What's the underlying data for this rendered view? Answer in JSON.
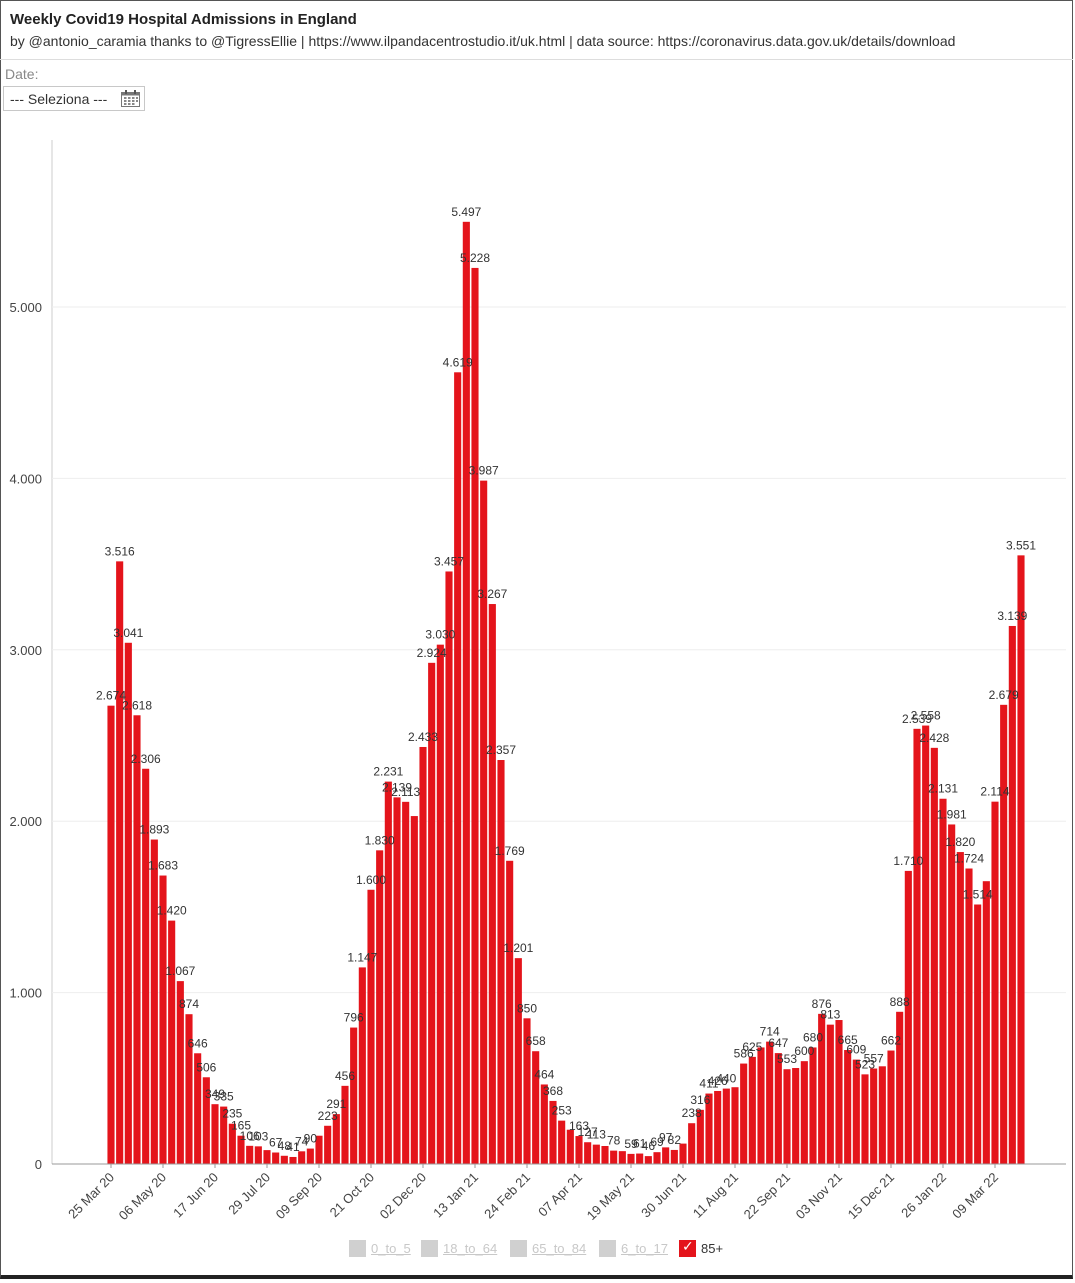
{
  "header": {
    "title": "Weekly Covid19 Hospital Admissions in England",
    "subtitle": "by @antonio_caramia thanks to @TigressEllie | https://www.ilpandacentrostudio.it/uk.html | data source: https://coronavirus.data.gov.uk/details/download"
  },
  "date_filter": {
    "label": "Date:",
    "value": "--- Seleziona ---",
    "icon": "calendar-icon"
  },
  "chart_data": {
    "type": "bar",
    "title": "Weekly Covid19 Hospital Admissions in England",
    "xlabel": "",
    "ylabel": "",
    "ylim": [
      0,
      5800
    ],
    "y_ticks": [
      "0",
      "1.000",
      "2.000",
      "3.000",
      "4.000",
      "5.000"
    ],
    "x_tick_labels": [
      "25 Mar 20",
      "06 May 20",
      "17 Jun 20",
      "29 Jul 20",
      "09 Sep 20",
      "21 Oct 20",
      "02 Dec 20",
      "13 Jan 21",
      "24 Feb 21",
      "07 Apr 21",
      "19 May 21",
      "30 Jun 21",
      "11 Aug 21",
      "22 Sep 21",
      "03 Nov 21",
      "15 Dec 21",
      "26 Jan 22",
      "09 Mar 22"
    ],
    "grid": true,
    "bar_color": "#e4141b",
    "series": [
      {
        "name": "85+",
        "values": [
          2674,
          3516,
          3041,
          2618,
          2306,
          1893,
          1683,
          1420,
          1067,
          874,
          646,
          506,
          349,
          335,
          235,
          165,
          106,
          103,
          81,
          67,
          48,
          41,
          74,
          90,
          165,
          223,
          291,
          456,
          796,
          1147,
          1600,
          1830,
          2231,
          2139,
          2113,
          2030,
          2433,
          2924,
          3030,
          3457,
          4619,
          5497,
          5228,
          3987,
          3267,
          2357,
          1769,
          1201,
          850,
          658,
          464,
          368,
          253,
          200,
          163,
          127,
          113,
          105,
          78,
          75,
          59,
          61,
          46,
          69,
          97,
          82,
          119,
          238,
          316,
          411,
          426,
          440,
          448,
          586,
          625,
          680,
          714,
          647,
          553,
          560,
          600,
          680,
          876,
          813,
          840,
          665,
          609,
          523,
          557,
          570,
          662,
          888,
          1710,
          2539,
          2558,
          2428,
          2131,
          1981,
          1820,
          1724,
          1514,
          1650,
          2114,
          2679,
          3139,
          3551
        ],
        "labels": [
          "2.674",
          "3.516",
          "3.041",
          "2.618",
          "2.306",
          "1.893",
          "1.683",
          "1.420",
          "1.067",
          "874",
          "646",
          "506",
          "349",
          "335",
          "235",
          "165",
          "106",
          "103",
          "",
          "67",
          "48",
          "41",
          "74",
          "90",
          "",
          "223",
          "291",
          "456",
          "796",
          "1.147",
          "1.600",
          "1.830",
          "2.231",
          "2.139",
          "2.113",
          "",
          "2.433",
          "2.924",
          "3.030",
          "3.457",
          "4.619",
          "5.497",
          "5.228",
          "3.987",
          "3.267",
          "2.357",
          "1.769",
          "1.201",
          "850",
          "658",
          "464",
          "368",
          "253",
          "",
          "163",
          "127",
          "113",
          "",
          "78",
          "",
          "59",
          "61",
          "46",
          "69",
          "97",
          "82",
          "",
          "238",
          "316",
          "411",
          "426",
          "440",
          "",
          "586",
          "625",
          "",
          "714",
          "647",
          "553",
          "",
          "600",
          "680",
          "876",
          "813",
          "",
          "665",
          "609",
          "523",
          "557",
          "",
          "662",
          "888",
          "1.710",
          "2.539",
          "2.558",
          "2.428",
          "2.131",
          "1.981",
          "1.820",
          "1.724",
          "1.514",
          "",
          "2.114",
          "2.679",
          "3.139",
          "3.551"
        ]
      }
    ],
    "legend": {
      "position": "bottom-center",
      "items": [
        {
          "label": "0_to_5",
          "active": false
        },
        {
          "label": "18_to_64",
          "active": false
        },
        {
          "label": "65_to_84",
          "active": false
        },
        {
          "label": "6_to_17",
          "active": false
        },
        {
          "label": "85+",
          "active": true
        }
      ]
    }
  }
}
